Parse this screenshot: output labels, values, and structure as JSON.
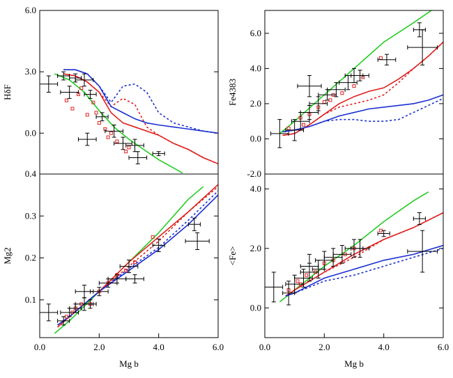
{
  "chart_data": [
    {
      "type": "line",
      "y_label": "HδF",
      "xlim": [
        0,
        6
      ],
      "ylim": [
        -2,
        6
      ],
      "yticks": [
        {
          "value": 6,
          "label": "6.0"
        },
        {
          "value": 3,
          "label": "3.0"
        },
        {
          "value": 0,
          "label": "0.0"
        }
      ],
      "series": [
        {
          "color": "#22cc22",
          "dash": false,
          "x": [
            0.5,
            1,
            1.5,
            2,
            2.5,
            3,
            3.5,
            4,
            4.5,
            4.8
          ],
          "values": [
            2.9,
            2.6,
            2.0,
            1.1,
            0.3,
            -0.3,
            -0.8,
            -1.3,
            -1.7,
            -1.95
          ]
        },
        {
          "color": "#e02020",
          "dash": false,
          "x": [
            0.8,
            1.2,
            1.6,
            2,
            2.4,
            2.8,
            3.2,
            3.6,
            4,
            4.5,
            5,
            5.5,
            6
          ],
          "values": [
            2.9,
            2.8,
            2.5,
            2.0,
            1.0,
            0.5,
            0.3,
            0.1,
            -0.1,
            -0.5,
            -0.8,
            -1.2,
            -1.5
          ]
        },
        {
          "color": "#e02020",
          "dash": true,
          "x": [
            0.8,
            1.2,
            1.6,
            2,
            2.4,
            2.8,
            3.2,
            3.6,
            4,
            4.5,
            5,
            5.5,
            6
          ],
          "values": [
            2.9,
            2.8,
            2.5,
            2.0,
            1.3,
            1.7,
            1.4,
            0.3,
            -0.1,
            -0.5,
            -0.8,
            -1.2,
            -1.5
          ]
        },
        {
          "color": "#1a2fd0",
          "dash": false,
          "x": [
            0.8,
            1.2,
            1.6,
            2,
            2.4,
            2.8,
            3.2,
            3.6,
            4,
            4.5,
            5,
            5.5,
            6
          ],
          "values": [
            3.1,
            3.1,
            2.9,
            2.3,
            1.3,
            1.0,
            0.7,
            0.5,
            0.4,
            0.3,
            0.2,
            0.1,
            0.0
          ]
        },
        {
          "color": "#1a2fd0",
          "dash": true,
          "x": [
            0.8,
            1.2,
            1.6,
            2,
            2.4,
            2.8,
            3.2,
            3.6,
            4,
            4.5,
            5,
            5.5,
            6
          ],
          "values": [
            3.1,
            3.1,
            2.9,
            2.3,
            1.5,
            2.3,
            2.4,
            2.0,
            1.0,
            0.5,
            0.3,
            0.1,
            0.0
          ]
        },
        {
          "color": "#e02020",
          "marker": "square",
          "x": [
            0.9,
            1.1,
            1.3,
            1.6,
            1.8,
            2.0,
            2.2,
            2.4,
            2.6,
            2.9,
            1.4,
            1.9,
            2.3,
            3.0
          ],
          "values": [
            1.6,
            1.2,
            1.9,
            0.9,
            1.5,
            0.5,
            0.2,
            0.0,
            -0.4,
            -0.9,
            2.2,
            1.0,
            -0.2,
            -0.7
          ]
        },
        {
          "color": "#000000",
          "marker": "errorbar",
          "x": [
            0.3,
            0.8,
            1.0,
            1.2,
            1.5,
            1.7,
            2.1,
            2.5,
            2.8,
            3.2,
            3.3,
            4.0,
            1.6
          ],
          "values": [
            2.4,
            2.8,
            2.0,
            2.7,
            2.6,
            1.9,
            0.8,
            0.1,
            -0.5,
            -0.6,
            -1.2,
            -1.0,
            -0.3
          ],
          "xerr": [
            0.3,
            0.2,
            0.3,
            0.2,
            0.3,
            0.2,
            0.2,
            0.3,
            0.3,
            0.3,
            0.3,
            0.2,
            0.3
          ],
          "yerr": [
            0.4,
            0.2,
            0.3,
            0.2,
            0.3,
            0.2,
            0.2,
            0.3,
            0.3,
            0.3,
            0.3,
            0.1,
            0.3
          ]
        }
      ]
    },
    {
      "type": "line",
      "y_label": "Fe4383",
      "xlim": [
        0,
        6
      ],
      "ylim": [
        -2,
        7.3
      ],
      "yticks": [
        {
          "value": 6,
          "label": "6.0"
        },
        {
          "value": 4,
          "label": "4.0"
        },
        {
          "value": 2,
          "label": "2.0"
        },
        {
          "value": 0,
          "label": "0.0"
        },
        {
          "value": -2,
          "label": "-2.0"
        }
      ],
      "series": [
        {
          "color": "#22cc22",
          "dash": false,
          "x": [
            0.5,
            1,
            2,
            3,
            4,
            5,
            5.6
          ],
          "values": [
            0.3,
            1.0,
            2.5,
            4.0,
            5.5,
            6.6,
            7.3
          ]
        },
        {
          "color": "#e02020",
          "dash": false,
          "x": [
            0.6,
            1,
            1.5,
            2,
            2.5,
            3,
            3.5,
            4,
            4.5,
            5,
            5.5,
            6
          ],
          "values": [
            0.2,
            0.3,
            0.8,
            1.4,
            2.0,
            2.4,
            2.7,
            2.9,
            3.4,
            4.0,
            4.7,
            5.5
          ]
        },
        {
          "color": "#e02020",
          "dash": true,
          "x": [
            0.6,
            1,
            1.5,
            2,
            2.5,
            3,
            3.5,
            4,
            4.5,
            5,
            5.5,
            6
          ],
          "values": [
            0.2,
            0.3,
            0.8,
            1.4,
            1.8,
            2.0,
            2.2,
            2.5,
            3.2,
            4.0,
            4.7,
            5.5
          ]
        },
        {
          "color": "#1a2fd0",
          "dash": false,
          "x": [
            0.6,
            1,
            1.5,
            2,
            2.5,
            3,
            3.5,
            4,
            4.5,
            5,
            5.5,
            6
          ],
          "values": [
            0.4,
            0.5,
            0.7,
            1.0,
            1.3,
            1.5,
            1.7,
            1.8,
            1.9,
            2.0,
            2.2,
            2.5
          ]
        },
        {
          "color": "#1a2fd0",
          "dash": true,
          "x": [
            0.6,
            1,
            1.5,
            2,
            2.5,
            3,
            3.5,
            4,
            4.5,
            5,
            5.5,
            6
          ],
          "values": [
            0.4,
            0.5,
            0.7,
            1.0,
            1.1,
            1.1,
            1.0,
            1.0,
            1.1,
            1.5,
            1.9,
            2.3
          ]
        },
        {
          "color": "#e02020",
          "marker": "square",
          "x": [
            0.8,
            1.2,
            1.5,
            1.8,
            2.0,
            2.3,
            2.6,
            3.0,
            3.3,
            3.9,
            1.3,
            2.2
          ],
          "values": [
            0.6,
            1.2,
            1.4,
            1.8,
            2.1,
            2.5,
            2.6,
            3.0,
            3.5,
            4.6,
            0.8,
            2.2
          ]
        },
        {
          "color": "#000000",
          "marker": "errorbar",
          "x": [
            0.5,
            1.0,
            1.2,
            1.5,
            1.8,
            2.1,
            2.4,
            2.8,
            3.0,
            3.2,
            4.1,
            5.2,
            5.3,
            1.5
          ],
          "values": [
            0.3,
            0.5,
            1.0,
            1.5,
            2.0,
            2.5,
            2.8,
            3.2,
            3.6,
            3.6,
            4.5,
            6.2,
            5.2,
            3.0
          ],
          "xerr": [
            0.3,
            0.3,
            0.3,
            0.3,
            0.3,
            0.3,
            0.3,
            0.3,
            0.3,
            0.3,
            0.3,
            0.2,
            0.5,
            0.4
          ],
          "yerr": [
            0.8,
            0.6,
            0.5,
            0.4,
            0.4,
            0.3,
            0.4,
            0.4,
            0.4,
            0.3,
            0.3,
            0.4,
            1.0,
            0.6
          ]
        }
      ]
    },
    {
      "type": "line",
      "y_label": "Mg2",
      "x_label": "Mg b",
      "xlim": [
        0,
        6
      ],
      "ylim": [
        0.01,
        0.4
      ],
      "xticks": [
        {
          "value": 0,
          "label": "0.0"
        },
        {
          "value": 2,
          "label": "2.0"
        },
        {
          "value": 4,
          "label": "4.0"
        },
        {
          "value": 6,
          "label": "6.0"
        }
      ],
      "yticks": [
        0.1,
        0.2,
        0.3,
        0.4
      ],
      "series": [
        {
          "color": "#22cc22",
          "dash": false,
          "x": [
            0.5,
            1,
            2,
            3,
            4,
            5,
            5.5
          ],
          "values": [
            0.02,
            0.05,
            0.12,
            0.19,
            0.26,
            0.34,
            0.37
          ]
        },
        {
          "color": "#e02020",
          "dash": false,
          "x": [
            0.6,
            1,
            2,
            3,
            4,
            5,
            6
          ],
          "values": [
            0.035,
            0.06,
            0.12,
            0.19,
            0.25,
            0.31,
            0.375
          ]
        },
        {
          "color": "#e02020",
          "dash": true,
          "x": [
            0.6,
            1,
            2,
            3,
            4,
            5,
            6
          ],
          "values": [
            0.035,
            0.06,
            0.12,
            0.18,
            0.24,
            0.31,
            0.37
          ]
        },
        {
          "color": "#1a2fd0",
          "dash": false,
          "x": [
            0.6,
            1,
            2,
            3,
            4,
            5,
            6
          ],
          "values": [
            0.04,
            0.06,
            0.12,
            0.17,
            0.22,
            0.28,
            0.35
          ]
        },
        {
          "color": "#1a2fd0",
          "dash": true,
          "x": [
            0.6,
            1,
            2,
            3,
            4,
            5,
            6
          ],
          "values": [
            0.04,
            0.06,
            0.12,
            0.175,
            0.225,
            0.29,
            0.36
          ]
        },
        {
          "color": "#e02020",
          "marker": "square",
          "x": [
            0.9,
            1.2,
            1.4,
            1.7,
            2.0,
            2.3,
            2.6,
            2.9,
            3.2,
            3.8,
            1.1
          ],
          "values": [
            0.06,
            0.08,
            0.09,
            0.09,
            0.12,
            0.14,
            0.16,
            0.17,
            0.19,
            0.25,
            0.07
          ]
        },
        {
          "color": "#000000",
          "marker": "errorbar",
          "x": [
            0.3,
            0.8,
            1.0,
            1.2,
            1.5,
            1.7,
            2.0,
            2.3,
            2.6,
            3.0,
            3.2,
            4.0,
            5.2,
            5.3,
            1.5
          ],
          "values": [
            0.07,
            0.05,
            0.07,
            0.08,
            0.09,
            0.09,
            0.12,
            0.14,
            0.15,
            0.18,
            0.15,
            0.23,
            0.28,
            0.24,
            0.12
          ],
          "xerr": [
            0.3,
            0.2,
            0.3,
            0.2,
            0.3,
            0.2,
            0.3,
            0.3,
            0.3,
            0.3,
            0.3,
            0.2,
            0.2,
            0.4,
            0.3
          ],
          "yerr": [
            0.02,
            0.01,
            0.01,
            0.01,
            0.015,
            0.01,
            0.01,
            0.01,
            0.01,
            0.015,
            0.01,
            0.015,
            0.015,
            0.02,
            0.015
          ]
        }
      ]
    },
    {
      "type": "line",
      "y_label": "<Fe>",
      "x_label": "Mg b",
      "xlim": [
        0,
        6
      ],
      "ylim": [
        -1,
        4.5
      ],
      "xticks": [
        {
          "value": 0,
          "label": "0.0"
        },
        {
          "value": 2,
          "label": "2.0"
        },
        {
          "value": 4,
          "label": "4.0"
        },
        {
          "value": 6,
          "label": "6.0"
        }
      ],
      "yticks": [
        {
          "value": 4,
          "label": "4.0"
        },
        {
          "value": 2,
          "label": "2.0"
        },
        {
          "value": 0,
          "label": "0.0"
        }
      ],
      "series": [
        {
          "color": "#22cc22",
          "dash": false,
          "x": [
            0.5,
            1,
            2,
            3,
            4,
            5,
            5.5
          ],
          "values": [
            0.2,
            0.6,
            1.4,
            2.1,
            2.9,
            3.6,
            3.9
          ]
        },
        {
          "color": "#e02020",
          "dash": false,
          "x": [
            0.7,
            1,
            2,
            3,
            4,
            5,
            6
          ],
          "values": [
            0.4,
            0.6,
            1.2,
            1.8,
            2.3,
            2.7,
            3.2
          ]
        },
        {
          "color": "#e02020",
          "dash": true,
          "x": [
            0.7,
            1,
            2,
            3,
            4,
            5,
            6
          ],
          "values": [
            0.4,
            0.6,
            1.2,
            1.7,
            2.3,
            2.7,
            3.2
          ]
        },
        {
          "color": "#1a2fd0",
          "dash": false,
          "x": [
            0.7,
            1,
            2,
            3,
            4,
            5,
            6
          ],
          "values": [
            0.4,
            0.5,
            1.0,
            1.3,
            1.6,
            1.8,
            2.1
          ]
        },
        {
          "color": "#1a2fd0",
          "dash": true,
          "x": [
            0.7,
            1,
            2,
            3,
            4,
            5,
            6
          ],
          "values": [
            0.4,
            0.5,
            0.9,
            1.1,
            1.4,
            1.7,
            2.0
          ]
        },
        {
          "color": "#e02020",
          "marker": "square",
          "x": [
            0.8,
            1.1,
            1.4,
            1.7,
            2.0,
            2.3,
            2.7,
            3.0,
            3.9,
            1.2
          ],
          "values": [
            0.6,
            0.9,
            1.1,
            1.2,
            1.5,
            1.6,
            1.8,
            2.0,
            2.6,
            0.8
          ]
        },
        {
          "color": "#000000",
          "marker": "errorbar",
          "x": [
            0.3,
            0.8,
            1.0,
            1.3,
            1.5,
            1.8,
            2.0,
            2.3,
            2.6,
            3.0,
            3.2,
            4.0,
            5.2,
            5.3,
            1.5
          ],
          "values": [
            0.7,
            0.5,
            0.8,
            1.0,
            1.2,
            1.3,
            1.6,
            1.7,
            1.8,
            2.0,
            2.0,
            2.5,
            3.0,
            1.9,
            1.4
          ],
          "xerr": [
            0.3,
            0.2,
            0.3,
            0.3,
            0.3,
            0.2,
            0.3,
            0.3,
            0.3,
            0.3,
            0.3,
            0.2,
            0.2,
            0.5,
            0.3
          ],
          "yerr": [
            0.5,
            0.4,
            0.3,
            0.3,
            0.3,
            0.3,
            0.3,
            0.3,
            0.3,
            0.3,
            0.3,
            0.1,
            0.2,
            0.7,
            0.4
          ]
        }
      ]
    }
  ]
}
